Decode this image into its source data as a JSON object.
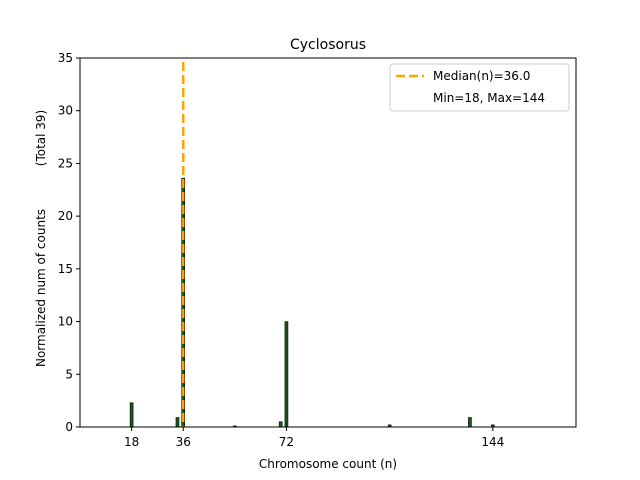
{
  "chart_data": {
    "type": "bar",
    "title": "Cyclosorus",
    "xlabel": "Chromosome count (n)",
    "ylabel": "Normalized num of counts",
    "ylabel2": "(Total 39)",
    "xlim": [
      0,
      173
    ],
    "ylim": [
      0,
      35
    ],
    "xticks": [
      18,
      36,
      72,
      144
    ],
    "yticks": [
      0,
      5,
      10,
      15,
      20,
      25,
      30,
      35
    ],
    "bars": [
      {
        "x": 18,
        "value": 2.3
      },
      {
        "x": 34,
        "value": 0.9
      },
      {
        "x": 36,
        "value": 23.6
      },
      {
        "x": 54,
        "value": 0.1
      },
      {
        "x": 70,
        "value": 0.5
      },
      {
        "x": 72,
        "value": 10.0
      },
      {
        "x": 108,
        "value": 0.2
      },
      {
        "x": 136,
        "value": 0.9
      },
      {
        "x": 144,
        "value": 0.2
      }
    ],
    "median_line": {
      "x": 36.0,
      "color": "#FFA500"
    },
    "bar_color": "#1a5c1a",
    "legend": {
      "placement": "top-right",
      "entries": [
        "Median(n)=36.0",
        "Min=18, Max=144"
      ]
    }
  }
}
